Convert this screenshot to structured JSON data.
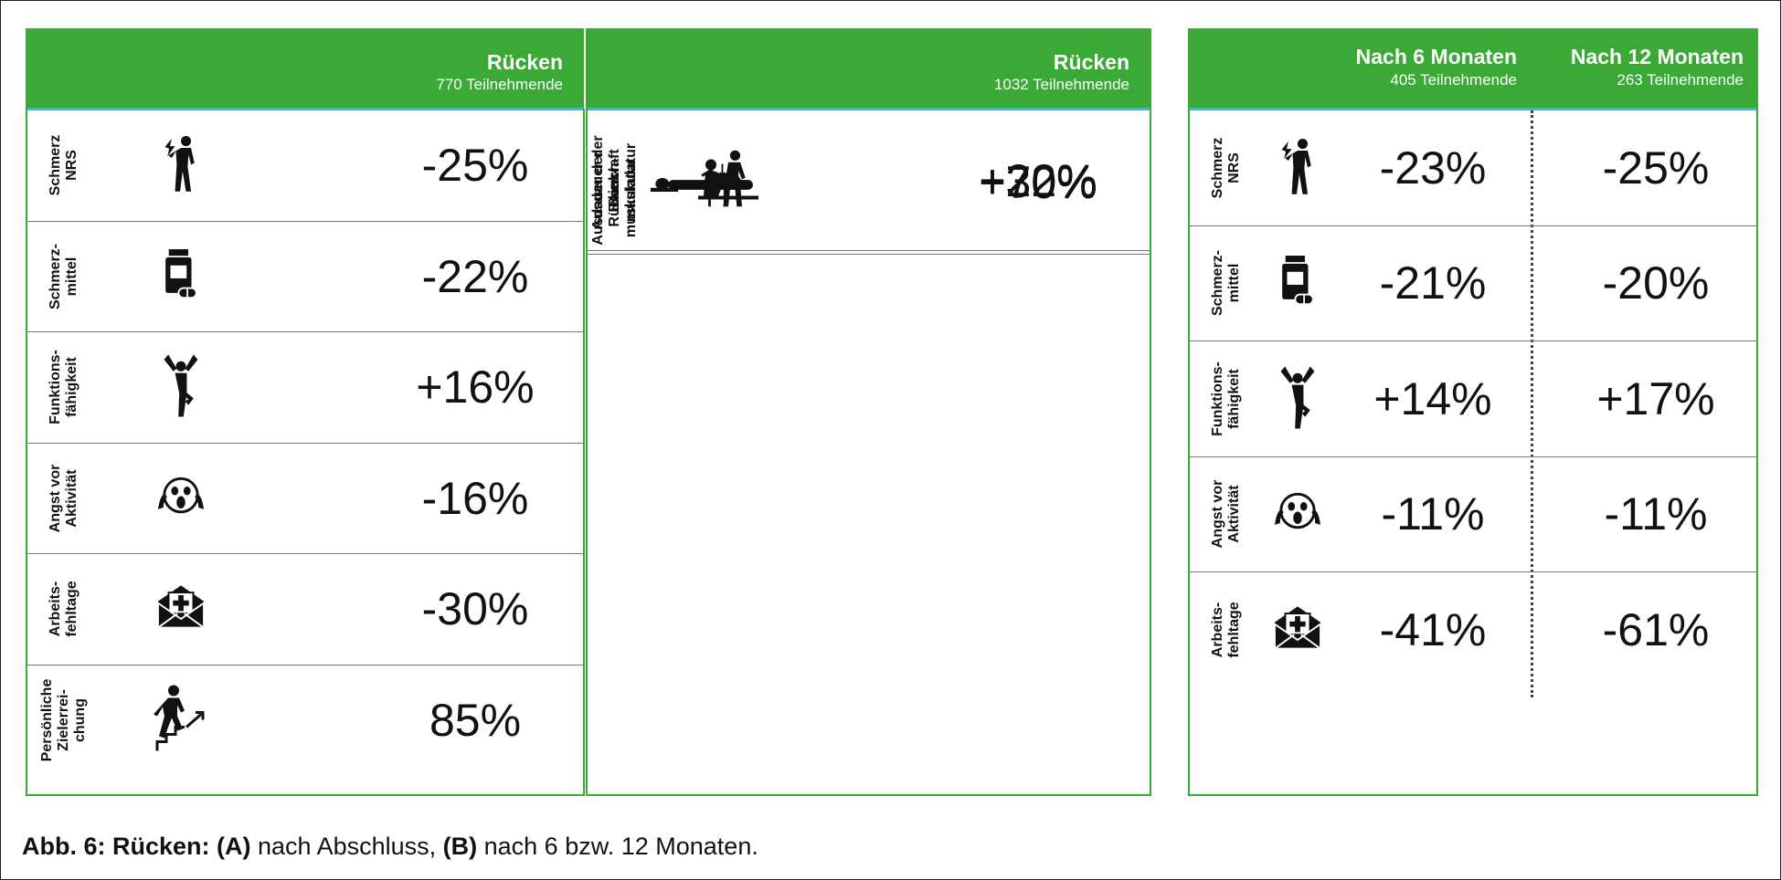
{
  "panel_a": {
    "title": "Rücken",
    "subtitle": "770 Teilnehmende",
    "rows": [
      {
        "label_line1": "Schmerz",
        "label_line2": "NRS",
        "icon": "pain-person-icon",
        "value": "-25%"
      },
      {
        "label_line1": "Schmerz-",
        "label_line2": "mittel",
        "icon": "medication-icon",
        "value": "-22%"
      },
      {
        "label_line1": "Funktions-",
        "label_line2": "fähigkeit",
        "icon": "balance-person-icon",
        "value": "+16%"
      },
      {
        "label_line1": "Angst vor",
        "label_line2": "Aktivität",
        "icon": "fear-face-icon",
        "value": "-16%"
      },
      {
        "label_line1": "Arbeits-",
        "label_line2": "fehltage",
        "icon": "sick-note-envelope-icon",
        "value": "-30%"
      },
      {
        "label_line1": "Persönliche",
        "label_line2": "Zielerrei-",
        "label_line3": "chung",
        "icon": "stairs-goal-icon",
        "value": "85%"
      }
    ]
  },
  "panel_b": {
    "title": "Rücken",
    "subtitle": "1032 Teilnehmende",
    "rows": [
      {
        "label_line1": "Beinkraft",
        "icon": "chair-squat-icon",
        "value": "+22%"
      },
      {
        "label_line1": "Ausdauer der",
        "label_line2": "Bauch-",
        "label_line3": "muskulatur",
        "icon": "situp-icon",
        "value": "+70%"
      },
      {
        "label_line1": "Ausdauer der",
        "label_line2": "Rücken-",
        "label_line3": "muskulatur",
        "icon": "plank-icon",
        "value": "+30%"
      }
    ]
  },
  "panel_c": {
    "col1_title": "Nach 6 Monaten",
    "col1_subtitle": "405 Teilnehmende",
    "col2_title": "Nach 12 Monaten",
    "col2_subtitle": "263 Teilnehmende",
    "rows": [
      {
        "label_line1": "Schmerz",
        "label_line2": "NRS",
        "icon": "pain-person-icon",
        "value6": "-23%",
        "value12": "-25%"
      },
      {
        "label_line1": "Schmerz-",
        "label_line2": "mittel",
        "icon": "medication-icon",
        "value6": "-21%",
        "value12": "-20%"
      },
      {
        "label_line1": "Funktions-",
        "label_line2": "fähigkeit",
        "icon": "balance-person-icon",
        "value6": "+14%",
        "value12": "+17%"
      },
      {
        "label_line1": "Angst vor",
        "label_line2": "Aktivität",
        "icon": "fear-face-icon",
        "value6": "-11%",
        "value12": "-11%"
      },
      {
        "label_line1": "Arbeits-",
        "label_line2": "fehltage",
        "icon": "sick-note-envelope-icon",
        "value6": "-41%",
        "value12": "-61%"
      }
    ]
  },
  "caption": {
    "prefix": "Abb. 6: Rücken: (A)",
    "part1": " nach Abschluss, ",
    "b_label": "(B)",
    "part2": " nach 6 bzw. 12 Monaten."
  },
  "colors": {
    "accent_green": "#3aa935",
    "header_rule_teal": "#3fb7c9"
  }
}
